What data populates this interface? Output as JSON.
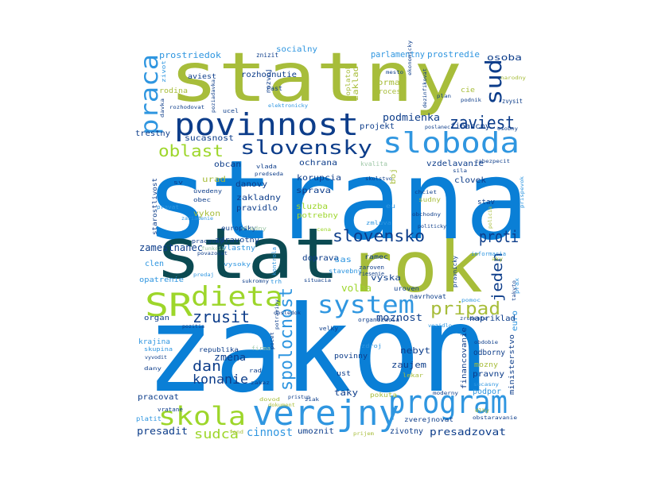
{
  "palette": {
    "blue": "#0a7fd6",
    "light_blue": "#2f96e0",
    "navy": "#0d3d8a",
    "olive": "#a7bd3a",
    "lime": "#9dd62a",
    "teal": "#0b4a52",
    "pale": "#9fc8a8"
  },
  "words": [
    {
      "text": "strana",
      "color": "blue"
    },
    {
      "text": "zakon",
      "color": "blue"
    },
    {
      "text": "statny",
      "color": "olive"
    },
    {
      "text": "stat",
      "color": "teal"
    },
    {
      "text": "rok",
      "color": "olive"
    },
    {
      "text": "verejny",
      "color": "light_blue"
    },
    {
      "text": "program",
      "color": "light_blue"
    },
    {
      "text": "povinnost",
      "color": "navy"
    },
    {
      "text": "sloboda",
      "color": "light_blue"
    },
    {
      "text": "system",
      "color": "light_blue"
    },
    {
      "text": "dieta",
      "color": "lime"
    },
    {
      "text": "SR",
      "color": "lime"
    },
    {
      "text": "skola",
      "color": "lime"
    },
    {
      "text": "praca",
      "color": "light_blue"
    },
    {
      "text": "sud",
      "color": "navy"
    },
    {
      "text": "slovensky",
      "color": "navy"
    },
    {
      "text": "oblast",
      "color": "lime"
    },
    {
      "text": "spolocnost",
      "color": "light_blue"
    },
    {
      "text": "pripad",
      "color": "olive"
    },
    {
      "text": "zrusit",
      "color": "navy"
    },
    {
      "text": "slovensko",
      "color": "navy"
    },
    {
      "text": "proti",
      "color": "navy"
    },
    {
      "text": "zaviest",
      "color": "navy"
    },
    {
      "text": "jeden",
      "color": "navy"
    },
    {
      "text": "konanie",
      "color": "navy"
    },
    {
      "text": "dan",
      "color": "navy"
    },
    {
      "text": "sudca",
      "color": "lime"
    },
    {
      "text": "cinnost",
      "color": "light_blue"
    },
    {
      "text": "presadzovat",
      "color": "navy"
    },
    {
      "text": "presadit",
      "color": "navy"
    },
    {
      "text": "podmienka",
      "color": "navy"
    },
    {
      "text": "zamestnanec",
      "color": "navy"
    },
    {
      "text": "zmena",
      "color": "navy"
    },
    {
      "text": "prostriedok",
      "color": "light_blue"
    },
    {
      "text": "parlamentny",
      "color": "light_blue"
    },
    {
      "text": "prostredie",
      "color": "light_blue"
    },
    {
      "text": "osoba",
      "color": "navy"
    },
    {
      "text": "socialny",
      "color": "light_blue"
    },
    {
      "text": "rozhodnutie",
      "color": "navy"
    },
    {
      "text": "aviest",
      "color": "navy"
    },
    {
      "text": "zaklad",
      "color": "olive"
    },
    {
      "text": "forma",
      "color": "olive"
    },
    {
      "text": "proces",
      "color": "olive"
    },
    {
      "text": "projekt",
      "color": "navy"
    },
    {
      "text": "financny",
      "color": "navy"
    },
    {
      "text": "sucasnost",
      "color": "navy"
    },
    {
      "text": "trestny",
      "color": "navy"
    },
    {
      "text": "ochrana",
      "color": "navy"
    },
    {
      "text": "vzdelavanie",
      "color": "navy"
    },
    {
      "text": "obcan",
      "color": "navy"
    },
    {
      "text": "kvalita",
      "color": "pale"
    },
    {
      "text": "clovek",
      "color": "navy"
    },
    {
      "text": "urad",
      "color": "olive"
    },
    {
      "text": "danovy",
      "color": "navy"
    },
    {
      "text": "zakladny",
      "color": "navy"
    },
    {
      "text": "pravidlo",
      "color": "navy"
    },
    {
      "text": "sprava",
      "color": "navy"
    },
    {
      "text": "korupcia",
      "color": "navy"
    },
    {
      "text": "sluzba",
      "color": "lime"
    },
    {
      "text": "potrebny",
      "color": "lime"
    },
    {
      "text": "doprava",
      "color": "navy"
    },
    {
      "text": "stav",
      "color": "navy"
    },
    {
      "text": "vykon",
      "color": "olive"
    },
    {
      "text": "vlastny",
      "color": "light_blue"
    },
    {
      "text": "clen",
      "color": "light_blue"
    },
    {
      "text": "opatrenie",
      "color": "light_blue"
    },
    {
      "text": "organ",
      "color": "navy"
    },
    {
      "text": "moznost",
      "color": "navy"
    },
    {
      "text": "volba",
      "color": "lime"
    },
    {
      "text": "vyska",
      "color": "navy"
    },
    {
      "text": "sas",
      "color": "light_blue"
    },
    {
      "text": "krajina",
      "color": "light_blue"
    },
    {
      "text": "nebyt",
      "color": "navy"
    },
    {
      "text": "zaujem",
      "color": "navy"
    },
    {
      "text": "povinny",
      "color": "navy"
    },
    {
      "text": "ust",
      "color": "navy"
    },
    {
      "text": "taky",
      "color": "navy"
    },
    {
      "text": "pracovat",
      "color": "navy"
    },
    {
      "text": "umoznit",
      "color": "navy"
    },
    {
      "text": "zivotny",
      "color": "navy"
    },
    {
      "text": "financovanie",
      "color": "navy"
    },
    {
      "text": "odborny",
      "color": "navy"
    },
    {
      "text": "mozny",
      "color": "olive"
    },
    {
      "text": "pravny",
      "color": "navy"
    },
    {
      "text": "podpor",
      "color": "light_blue"
    },
    {
      "text": "ministerstvo",
      "color": "navy"
    },
    {
      "text": "euro",
      "color": "light_blue"
    },
    {
      "text": "napriklad",
      "color": "navy"
    },
    {
      "text": "zdravotny",
      "color": "navy"
    },
    {
      "text": "europsky",
      "color": "navy"
    },
    {
      "text": "republika",
      "color": "navy"
    },
    {
      "text": "vladny",
      "color": "pale"
    },
    {
      "text": "uroven",
      "color": "navy"
    },
    {
      "text": "navrhovat",
      "color": "navy"
    },
    {
      "text": "boj",
      "color": "olive"
    },
    {
      "text": "zmluva",
      "color": "light_blue"
    },
    {
      "text": "sudny",
      "color": "olive"
    },
    {
      "text": "rozvoj",
      "color": "navy"
    },
    {
      "text": "poplatok",
      "color": "olive"
    },
    {
      "text": "cast",
      "color": "navy"
    },
    {
      "text": "cie",
      "color": "olive"
    },
    {
      "text": "zvysit",
      "color": "navy"
    },
    {
      "text": "rodina",
      "color": "olive"
    },
    {
      "text": "zivot",
      "color": "light_blue"
    },
    {
      "text": "znizit",
      "color": "navy"
    },
    {
      "text": "starostlivost",
      "color": "navy"
    },
    {
      "text": "pravat",
      "color": "light_blue"
    },
    {
      "text": "obec",
      "color": "navy"
    },
    {
      "text": "uvedeny",
      "color": "navy"
    },
    {
      "text": "vlada",
      "color": "navy"
    },
    {
      "text": "pracovny",
      "color": "navy"
    },
    {
      "text": "vysoky",
      "color": "light_blue"
    },
    {
      "text": "firma",
      "color": "pale"
    },
    {
      "text": "rad",
      "color": "navy"
    },
    {
      "text": "dany",
      "color": "navy"
    },
    {
      "text": "skupina",
      "color": "light_blue"
    },
    {
      "text": "zdroj",
      "color": "light_blue"
    },
    {
      "text": "pokuta",
      "color": "olive"
    },
    {
      "text": "vratane",
      "color": "navy"
    },
    {
      "text": "platit",
      "color": "light_blue"
    },
    {
      "text": "zverejnovat",
      "color": "navy"
    },
    {
      "text": "kontrola",
      "color": "light_blue"
    },
    {
      "text": "trh",
      "color": "light_blue"
    },
    {
      "text": "stavebny",
      "color": "light_blue"
    },
    {
      "text": "ramec",
      "color": "navy"
    },
    {
      "text": "zaroven",
      "color": "navy"
    },
    {
      "text": "riesenie",
      "color": "navy"
    },
    {
      "text": "sv",
      "color": "navy"
    },
    {
      "text": "ucel",
      "color": "navy"
    },
    {
      "text": "sila",
      "color": "navy"
    },
    {
      "text": "chciet",
      "color": "navy"
    },
    {
      "text": "obdobie",
      "color": "navy"
    },
    {
      "text": "pravnicky",
      "color": "navy"
    },
    {
      "text": "informacia",
      "color": "light_blue"
    },
    {
      "text": "politicky",
      "color": "navy"
    },
    {
      "text": "situacia",
      "color": "navy"
    },
    {
      "text": "predaj",
      "color": "light_blue"
    },
    {
      "text": "organizacia",
      "color": "navy"
    },
    {
      "text": "velky",
      "color": "navy"
    },
    {
      "text": "zakaz",
      "color": "navy"
    },
    {
      "text": "ziak",
      "color": "navy"
    },
    {
      "text": "lekar",
      "color": "olive"
    },
    {
      "text": "prijem",
      "color": "olive"
    },
    {
      "text": "fond",
      "color": "olive"
    },
    {
      "text": "poslanec",
      "color": "navy"
    },
    {
      "text": "osobny",
      "color": "navy"
    },
    {
      "text": "zabezpecit",
      "color": "navy"
    },
    {
      "text": "dovod",
      "color": "olive"
    },
    {
      "text": "dokument",
      "color": "olive"
    },
    {
      "text": "pristup",
      "color": "navy"
    },
    {
      "text": "sukromny",
      "color": "navy"
    },
    {
      "text": "povazovat",
      "color": "navy"
    },
    {
      "text": "dochodok",
      "color": "olive"
    },
    {
      "text": "potraviny",
      "color": "navy"
    },
    {
      "text": "elektronicky",
      "color": "light_blue"
    },
    {
      "text": "moderny",
      "color": "navy"
    },
    {
      "text": "obstaravanie",
      "color": "navy"
    },
    {
      "text": "podnik",
      "color": "navy"
    },
    {
      "text": "plan",
      "color": "navy"
    },
    {
      "text": "mesto",
      "color": "navy"
    },
    {
      "text": "rozhodovat",
      "color": "navy"
    },
    {
      "text": "davka",
      "color": "navy"
    },
    {
      "text": "poziadavka",
      "color": "navy"
    },
    {
      "text": "pozitia",
      "color": "navy"
    },
    {
      "text": "dosledok",
      "color": "navy"
    },
    {
      "text": "vyvodit",
      "color": "navy"
    },
    {
      "text": "prax",
      "color": "light_blue"
    },
    {
      "text": "takyto",
      "color": "navy"
    },
    {
      "text": "pomoc",
      "color": "light_blue"
    },
    {
      "text": "sucasny",
      "color": "light_blue"
    },
    {
      "text": "prispevok",
      "color": "light_blue"
    },
    {
      "text": "obchodny",
      "color": "navy"
    },
    {
      "text": "zariadenie",
      "color": "light_blue"
    },
    {
      "text": "narodny",
      "color": "olive"
    },
    {
      "text": "predseda",
      "color": "navy"
    },
    {
      "text": "skolstvo",
      "color": "navy"
    },
    {
      "text": "dlhy",
      "color": "olive"
    },
    {
      "text": "policia",
      "color": "olive"
    },
    {
      "text": "vozidlo",
      "color": "light_blue"
    },
    {
      "text": "zrusenie",
      "color": "navy"
    },
    {
      "text": "ekonomicky",
      "color": "navy"
    },
    {
      "text": "funkcia",
      "color": "pale"
    },
    {
      "text": "pocet",
      "color": "navy"
    },
    {
      "text": "eu",
      "color": "light_blue"
    },
    {
      "text": "cena",
      "color": "lime"
    },
    {
      "text": "aky",
      "color": "olive"
    },
    {
      "text": "dezinfikovat",
      "color": "navy"
    }
  ]
}
